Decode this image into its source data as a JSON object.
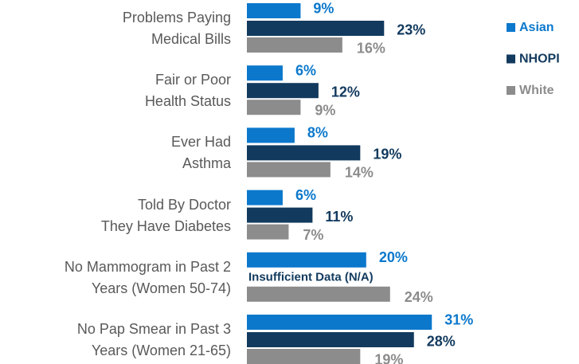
{
  "chart_data": {
    "type": "hbar",
    "categories": [
      "Problems Paying\nMedical Bills",
      "Fair or Poor \nHealth Status",
      "Ever Had\nAsthma ",
      "Told By Doctor\nThey Have Diabetes",
      "No Mammogram in Past 2\nYears (Women 50-74)",
      "No Pap Smear in Past 3\nYears (Women 21-65)"
    ],
    "series": [
      {
        "name": "Asian",
        "color": "#0b78cc",
        "values": [
          9,
          6,
          8,
          6,
          20,
          31
        ],
        "value_labels": [
          "9%",
          "6%",
          "8%",
          "6%",
          "20%",
          "31%"
        ]
      },
      {
        "name": "NHOPI",
        "color": "#123a5e",
        "values": [
          23,
          12,
          19,
          11,
          null,
          28
        ],
        "value_labels": [
          "23%",
          "12%",
          "19%",
          "11%",
          "Insufficient Data (N/A)",
          "28%"
        ]
      },
      {
        "name": "White",
        "color": "#8c8c8c",
        "values": [
          16,
          9,
          14,
          7,
          24,
          19
        ],
        "value_labels": [
          "16%",
          "9%",
          "14%",
          "7%",
          "24%",
          "19%"
        ]
      }
    ],
    "xlim": [
      0,
      55
    ],
    "legend": "right"
  }
}
